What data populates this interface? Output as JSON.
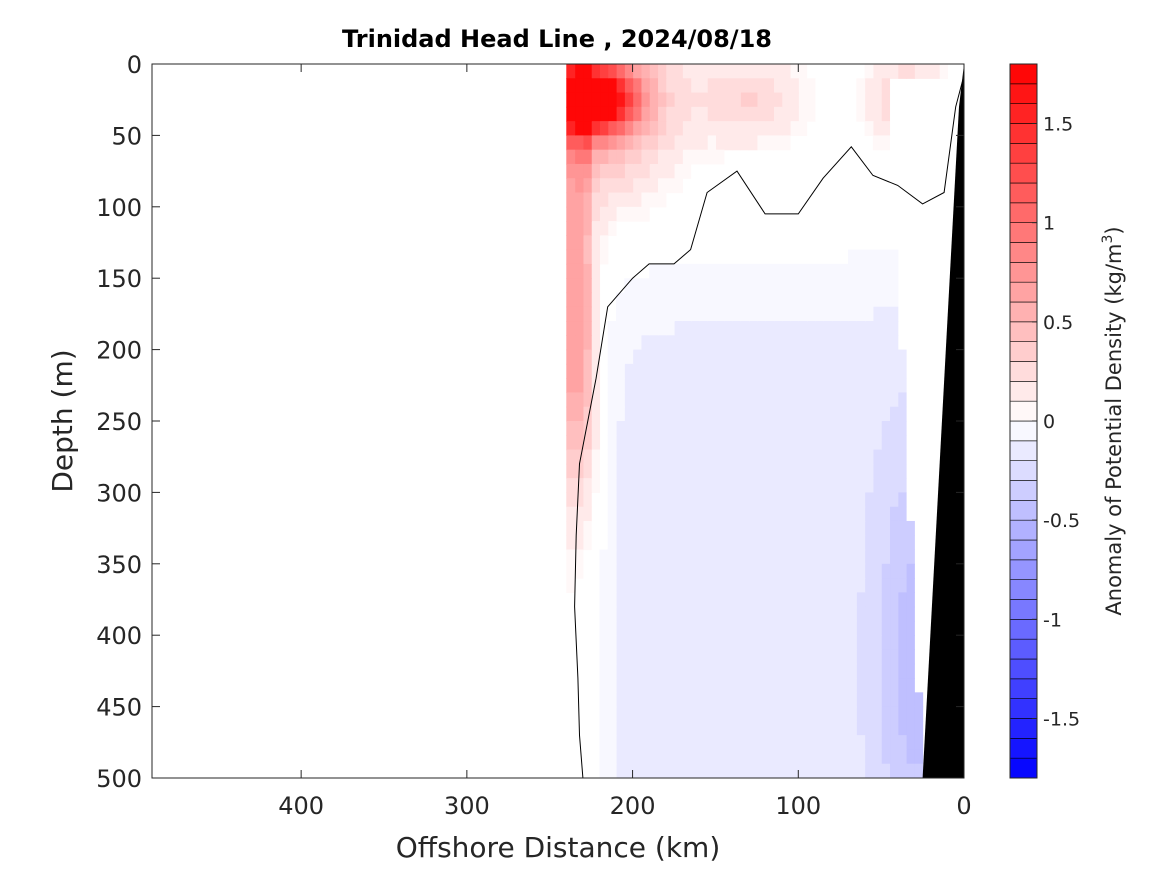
{
  "chart_data": {
    "type": "heatmap",
    "title": "Trinidad Head Line , 2024/08/18",
    "xlabel": "Offshore Distance (km)",
    "ylabel": "Depth (m)",
    "xlim": [
      490,
      0
    ],
    "ylim": [
      0,
      500
    ],
    "x_reversed": true,
    "y_reversed": true,
    "x_ticks": [
      400,
      300,
      200,
      100,
      0
    ],
    "y_ticks": [
      0,
      50,
      100,
      150,
      200,
      250,
      300,
      350,
      400,
      450,
      500
    ],
    "colorbar": {
      "label": "Anomaly of Potential Density (kg/m",
      "label_superscript": "3",
      "label_suffix": ")",
      "range": [
        -1.8,
        1.8
      ],
      "ticks": [
        1.5,
        1,
        0.5,
        0,
        -0.5,
        -1,
        -1.5
      ],
      "n_levels": 36,
      "color_min": "#0000ff",
      "color_mid": "#ffffff",
      "color_max": "#ff0000"
    },
    "fields": [
      {
        "name": "surface_max",
        "distance_km": 225,
        "depth_m": 25,
        "anomaly": 1.7
      },
      {
        "name": "nearshore_surface",
        "distance_km": 35,
        "depth_m": 25,
        "anomaly": 0.35
      },
      {
        "name": "mid_surface",
        "distance_km": 130,
        "depth_m": 25,
        "anomaly": 0.3
      },
      {
        "name": "offshore_core",
        "distance_km": 235,
        "depth_m": 200,
        "anomaly": 0.6
      },
      {
        "name": "interior",
        "distance_km": 110,
        "depth_m": 350,
        "anomaly": -0.15
      },
      {
        "name": "slope",
        "distance_km": 30,
        "depth_m": 420,
        "anomaly": -0.3
      }
    ],
    "zero_contour": [
      [
        230,
        500
      ],
      [
        232,
        470
      ],
      [
        233,
        430
      ],
      [
        235,
        380
      ],
      [
        234,
        330
      ],
      [
        232,
        280
      ],
      [
        222,
        220
      ],
      [
        215,
        170
      ],
      [
        200,
        150
      ],
      [
        190,
        140
      ],
      [
        175,
        140
      ],
      [
        165,
        130
      ],
      [
        155,
        90
      ],
      [
        137,
        75
      ],
      [
        120,
        105
      ],
      [
        100,
        105
      ],
      [
        85,
        80
      ],
      [
        68,
        58
      ],
      [
        55,
        78
      ],
      [
        40,
        85
      ],
      [
        25,
        98
      ],
      [
        12,
        90
      ],
      [
        5,
        30
      ],
      [
        0,
        8
      ]
    ],
    "no_data_region": "distance > 240 km",
    "bathymetry_color": "#000000"
  }
}
